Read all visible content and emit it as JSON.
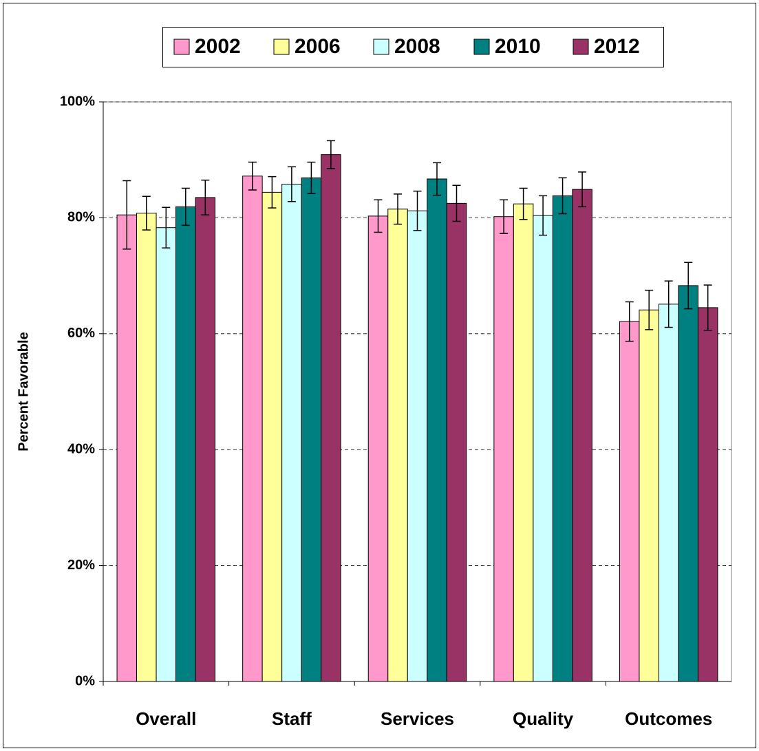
{
  "chart_data": {
    "type": "bar",
    "y_label": "Percent Favorable",
    "categories": [
      "Overall",
      "Staff",
      "Services",
      "Quality",
      "Outcomes"
    ],
    "series": [
      {
        "name": "2002",
        "color": "#ff99cc",
        "values": [
          80.5,
          87.2,
          80.3,
          80.2,
          62.1
        ],
        "errors": [
          5.9,
          2.4,
          2.8,
          2.9,
          3.4
        ]
      },
      {
        "name": "2006",
        "color": "#ffff99",
        "values": [
          80.8,
          84.4,
          81.5,
          82.4,
          64.1
        ],
        "errors": [
          2.9,
          2.7,
          2.6,
          2.7,
          3.4
        ]
      },
      {
        "name": "2008",
        "color": "#ccffff",
        "values": [
          78.3,
          85.8,
          81.2,
          80.4,
          65.1
        ],
        "errors": [
          3.5,
          3.0,
          3.4,
          3.4,
          4.0
        ]
      },
      {
        "name": "2010",
        "color": "#008080",
        "values": [
          81.9,
          86.9,
          86.7,
          83.8,
          68.3
        ],
        "errors": [
          3.2,
          2.7,
          2.8,
          3.1,
          4.0
        ]
      },
      {
        "name": "2012",
        "color": "#993366",
        "values": [
          83.5,
          90.9,
          82.5,
          84.9,
          64.5
        ],
        "errors": [
          3.0,
          2.4,
          3.1,
          3.0,
          3.9
        ]
      }
    ],
    "ylim": [
      0,
      100
    ],
    "yticks": [
      {
        "value": 0,
        "label": "0%"
      },
      {
        "value": 20,
        "label": "20%"
      },
      {
        "value": 40,
        "label": "40%"
      },
      {
        "value": 60,
        "label": "60%"
      },
      {
        "value": 80,
        "label": "80%"
      },
      {
        "value": 100,
        "label": "100%"
      }
    ],
    "grid": true,
    "legend": "top"
  }
}
